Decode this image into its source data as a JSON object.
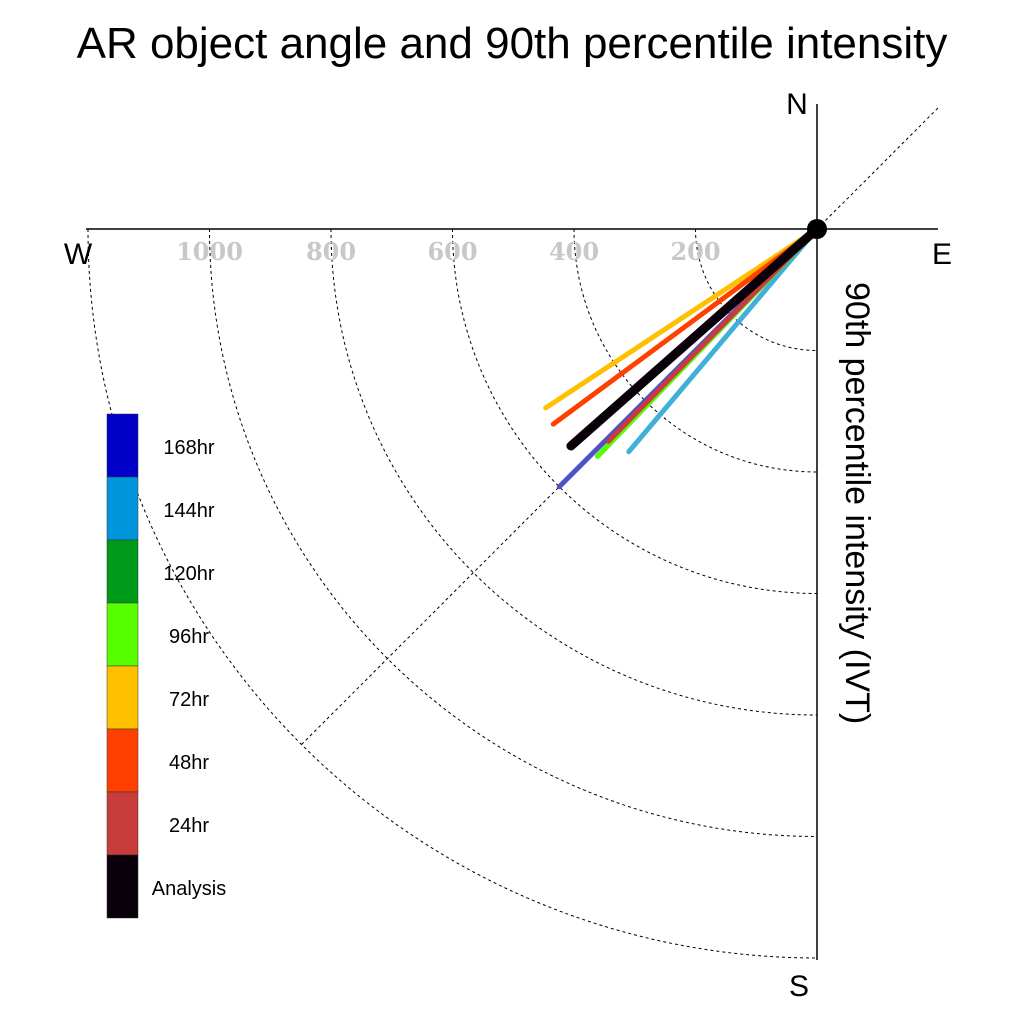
{
  "chart_data": {
    "type": "polar-line",
    "title": "AR object angle and 90th percentile intensity",
    "radial_label": "90th percentile intensity (IVT)",
    "compass": {
      "north": "N",
      "south": "S",
      "east": "E",
      "west": "W"
    },
    "radial_ticks": [
      200,
      400,
      600,
      800,
      1000
    ],
    "rmax": 1200,
    "series": [
      {
        "name": "168hr",
        "color": "#5050c8",
        "angle_deg": 225.0,
        "intensity": 600
      },
      {
        "name": "144hr",
        "color": "#40b0d8",
        "angle_deg": 220.2,
        "intensity": 480
      },
      {
        "name": "120hr",
        "color": "#009a1a",
        "angle_deg": 224.0,
        "intensity": 520
      },
      {
        "name": "96hr",
        "color": "#58ff00",
        "angle_deg": 224.0,
        "intensity": 520
      },
      {
        "name": "72hr",
        "color": "#ffc000",
        "angle_deg": 236.6,
        "intensity": 535
      },
      {
        "name": "48hr",
        "color": "#ff4000",
        "angle_deg": 233.5,
        "intensity": 540
      },
      {
        "name": "24hr",
        "color": "#c83c3c",
        "angle_deg": 224.5,
        "intensity": 490
      },
      {
        "name": "Analysis",
        "color": "#0a000a",
        "angle_deg": 228.6,
        "intensity": 540
      }
    ],
    "legend": [
      {
        "label": "168hr",
        "color": "#0000c8"
      },
      {
        "label": "144hr",
        "color": "#0096dc"
      },
      {
        "label": "120hr",
        "color": "#009a1a"
      },
      {
        "label": "96hr",
        "color": "#58ff00"
      },
      {
        "label": "72hr",
        "color": "#ffc000"
      },
      {
        "label": "48hr",
        "color": "#ff4000"
      },
      {
        "label": "24hr",
        "color": "#c83c3c"
      },
      {
        "label": "Analysis",
        "color": "#0a000a"
      }
    ]
  }
}
